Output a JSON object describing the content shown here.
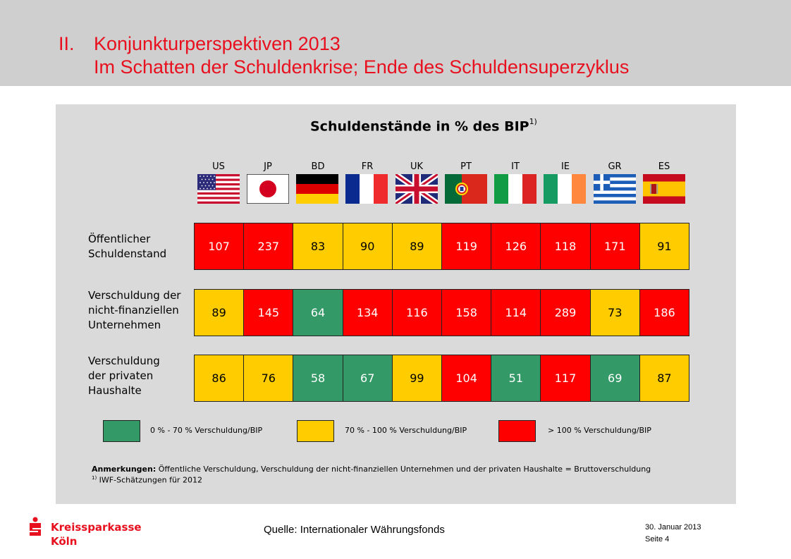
{
  "header": {
    "number": "II.",
    "line1": "Konjunkturperspektiven 2013",
    "line2": "Im Schatten der Schuldenkrise; Ende des Schuldensuperzyklus"
  },
  "chart_data": {
    "type": "table",
    "title": "Schuldenstände in % des BIP",
    "title_footnote": "1)",
    "categories": [
      "US",
      "JP",
      "BD",
      "FR",
      "UK",
      "PT",
      "IT",
      "IE",
      "GR",
      "ES"
    ],
    "series": [
      {
        "name": "Öffentlicher Schuldenstand",
        "label_lines": [
          "Öffentlicher",
          "Schuldenstand"
        ],
        "values": [
          107,
          237,
          83,
          90,
          89,
          119,
          126,
          118,
          171,
          91
        ]
      },
      {
        "name": "Verschuldung der nicht-finanziellen Unternehmen",
        "label_lines": [
          "Verschuldung der",
          "nicht-finanziellen",
          "Unternehmen"
        ],
        "values": [
          89,
          145,
          64,
          134,
          116,
          158,
          114,
          289,
          73,
          186
        ]
      },
      {
        "name": "Verschuldung der privaten Haushalte",
        "label_lines": [
          "Verschuldung",
          "der privaten",
          "Haushalte"
        ],
        "values": [
          86,
          76,
          58,
          67,
          99,
          104,
          51,
          117,
          69,
          87
        ]
      }
    ],
    "legend": [
      {
        "label": "0 % - 70 % Verschuldung/BIP",
        "color": "#339966"
      },
      {
        "label": "70 % - 100 % Verschuldung/BIP",
        "color": "#ffcc00"
      },
      {
        "label": "> 100 % Verschuldung/BIP",
        "color": "#ff0000"
      }
    ],
    "color_thresholds": [
      70,
      100
    ]
  },
  "notes": {
    "label": "Anmerkungen:",
    "text": " Öffentliche Verschuldung, Verschuldung der nicht-finanziellen Unternehmen und der privaten Haushalte = Bruttoverschuldung",
    "footnote_mark": "1)",
    "footnote_text": " IWF-Schätzungen für 2012"
  },
  "footer": {
    "source": "Quelle:  Internationaler  Währungsfonds",
    "date": "30. Januar 2013",
    "page": "Seite 4",
    "logo_line1": "Kreissparkasse",
    "logo_line2": "Köln"
  }
}
